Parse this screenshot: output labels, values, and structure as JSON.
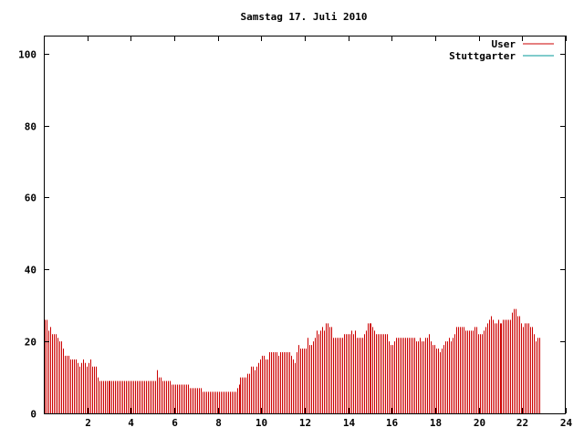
{
  "chart_data": {
    "type": "bar",
    "title": "Samstag 17. Juli 2010",
    "xlabel": "",
    "ylabel": "",
    "xlim": [
      0,
      24
    ],
    "ylim": [
      0,
      105
    ],
    "xticks": [
      "2",
      "4",
      "6",
      "8",
      "10",
      "12",
      "14",
      "16",
      "18",
      "20",
      "22",
      "24"
    ],
    "yticks": [
      "0",
      "20",
      "40",
      "60",
      "80",
      "100"
    ],
    "legend_position": "top-right",
    "series": [
      {
        "name": "User",
        "color": "#cc0000",
        "step_minutes": 5,
        "values": [
          26,
          26,
          23,
          24,
          22,
          22,
          22,
          21,
          20,
          20,
          18,
          16,
          16,
          16,
          15,
          15,
          15,
          15,
          14,
          13,
          14,
          15,
          14,
          13,
          14,
          15,
          13,
          13,
          13,
          10,
          9,
          9,
          9,
          9,
          9,
          9,
          9,
          9,
          9,
          9,
          9,
          9,
          9,
          9,
          9,
          9,
          9,
          9,
          9,
          9,
          9,
          9,
          9,
          9,
          9,
          9,
          9,
          9,
          9,
          9,
          9,
          9,
          12,
          10,
          10,
          9,
          9,
          9,
          9,
          9,
          8,
          8,
          8,
          8,
          8,
          8,
          8,
          8,
          8,
          8,
          7,
          7,
          7,
          7,
          7,
          7,
          7,
          6,
          6,
          6,
          6,
          6,
          6,
          6,
          6,
          6,
          6,
          6,
          6,
          6,
          6,
          6,
          6,
          6,
          6,
          6,
          7,
          8,
          10,
          10,
          10,
          10,
          11,
          11,
          13,
          13,
          12,
          13,
          14,
          15,
          16,
          16,
          15,
          15,
          17,
          17,
          17,
          17,
          17,
          16,
          17,
          17,
          17,
          17,
          17,
          17,
          16,
          15,
          14,
          17,
          19,
          18,
          18,
          18,
          18,
          21,
          19,
          19,
          20,
          21,
          23,
          22,
          23,
          24,
          23,
          25,
          25,
          24,
          24,
          21,
          21,
          21,
          21,
          21,
          21,
          22,
          22,
          22,
          22,
          23,
          22,
          23,
          21,
          21,
          21,
          21,
          22,
          23,
          25,
          25,
          25,
          24,
          23,
          22,
          22,
          22,
          22,
          22,
          22,
          22,
          20,
          19,
          19,
          20,
          21,
          21,
          21,
          21,
          21,
          21,
          21,
          21,
          21,
          21,
          21,
          20,
          20,
          21,
          20,
          20,
          21,
          21,
          22,
          20,
          19,
          19,
          18,
          18,
          17,
          18,
          19,
          20,
          20,
          21,
          20,
          21,
          22,
          24,
          24,
          24,
          24,
          24,
          23,
          23,
          23,
          23,
          23,
          24,
          24,
          22,
          22,
          22,
          23,
          24,
          25,
          26,
          27,
          26,
          25,
          25,
          26,
          25,
          25,
          26,
          26,
          26,
          26,
          26,
          28,
          29,
          29,
          27,
          27,
          25,
          24,
          25,
          25,
          25,
          24,
          24,
          22,
          20,
          21,
          21
        ]
      },
      {
        "name": "Stuttgarter",
        "color": "#009999",
        "values": []
      }
    ]
  }
}
